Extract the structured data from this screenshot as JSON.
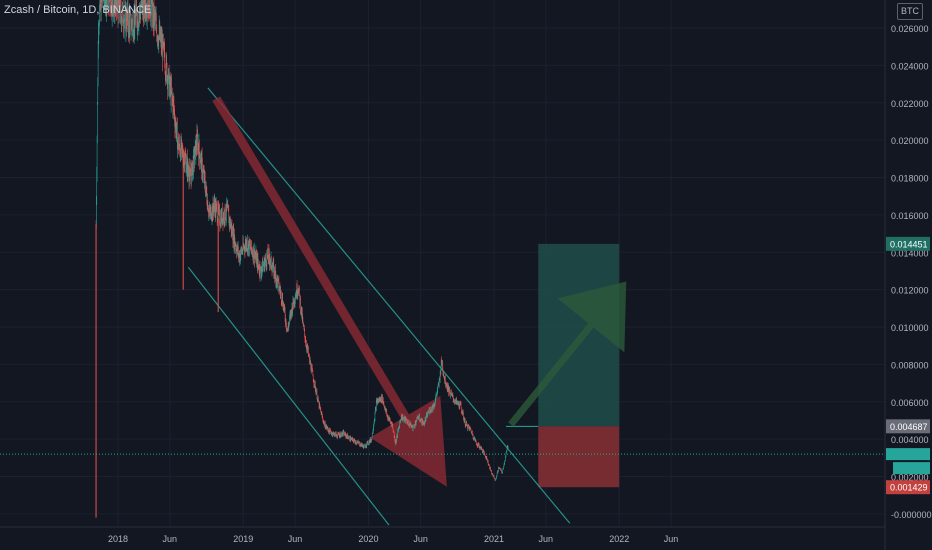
{
  "header": {
    "title": "Zcash / Bitcoin, 1D, BINANCE",
    "currency": "BTC"
  },
  "colors": {
    "background": "#131722",
    "up": "#26a69a",
    "down": "#ef5350",
    "text": "#b2b5be",
    "channel": "#26a69a",
    "current_price_line": "#26a69a",
    "target_zone": "#1f4e4a",
    "stop_zone": "#7b2d33",
    "arrow_down": "#8b2a33",
    "arrow_up": "#2b5a3a"
  },
  "chart_data": {
    "type": "candlestick",
    "symbol": "Zcash / Bitcoin",
    "timeframe": "1D",
    "exchange": "BINANCE",
    "x_tick_labels": [
      "2018",
      "Jun",
      "2019",
      "Jun",
      "2020",
      "Jun",
      "2021",
      "Jun",
      "2022",
      "Jun"
    ],
    "y_tick_labels": [
      "0.026000",
      "0.024000",
      "0.022000",
      "0.020000",
      "0.018000",
      "0.016000",
      "0.014000",
      "0.012000",
      "0.010000",
      "0.008000",
      "0.006000",
      "0.004000",
      "0.002000",
      "-0.000000"
    ],
    "ylim": [
      -0.0007,
      0.0275
    ],
    "price_path": [
      [
        "2017-10-29",
        0.0155
      ],
      [
        "2017-11-05",
        0.0265
      ],
      [
        "2017-11-20",
        0.028
      ],
      [
        "2017-12-15",
        0.0275
      ],
      [
        "2018-01-10",
        0.0268
      ],
      [
        "2018-02-10",
        0.0262
      ],
      [
        "2018-03-10",
        0.027
      ],
      [
        "2018-04-01",
        0.0275
      ],
      [
        "2018-04-20",
        0.0262
      ],
      [
        "2018-05-10",
        0.025
      ],
      [
        "2018-05-25",
        0.0235
      ],
      [
        "2018-06-10",
        0.022
      ],
      [
        "2018-06-25",
        0.0198
      ],
      [
        "2018-07-15",
        0.019
      ],
      [
        "2018-08-01",
        0.018
      ],
      [
        "2018-08-20",
        0.02
      ],
      [
        "2018-09-10",
        0.0178
      ],
      [
        "2018-09-25",
        0.016
      ],
      [
        "2018-10-10",
        0.0165
      ],
      [
        "2018-10-25",
        0.0158
      ],
      [
        "2018-11-15",
        0.0162
      ],
      [
        "2018-12-01",
        0.015
      ],
      [
        "2018-12-20",
        0.0138
      ],
      [
        "2019-01-10",
        0.0145
      ],
      [
        "2019-02-01",
        0.014
      ],
      [
        "2019-02-20",
        0.013
      ],
      [
        "2019-03-15",
        0.0138
      ],
      [
        "2019-04-05",
        0.0128
      ],
      [
        "2019-04-25",
        0.0115
      ],
      [
        "2019-05-10",
        0.0098
      ],
      [
        "2019-05-25",
        0.0112
      ],
      [
        "2019-06-10",
        0.0122
      ],
      [
        "2019-06-25",
        0.01
      ],
      [
        "2019-07-10",
        0.0085
      ],
      [
        "2019-07-25",
        0.0072
      ],
      [
        "2019-08-10",
        0.0058
      ],
      [
        "2019-08-25",
        0.0048
      ],
      [
        "2019-09-10",
        0.0044
      ],
      [
        "2019-10-01",
        0.0042
      ],
      [
        "2019-10-20",
        0.0043
      ],
      [
        "2019-11-10",
        0.004
      ],
      [
        "2019-12-01",
        0.0038
      ],
      [
        "2019-12-20",
        0.0036
      ],
      [
        "2020-01-10",
        0.004
      ],
      [
        "2020-01-25",
        0.006
      ],
      [
        "2020-02-10",
        0.0062
      ],
      [
        "2020-02-25",
        0.0052
      ],
      [
        "2020-03-10",
        0.0048
      ],
      [
        "2020-03-20",
        0.0038
      ],
      [
        "2020-04-05",
        0.0052
      ],
      [
        "2020-04-20",
        0.005
      ],
      [
        "2020-05-10",
        0.0046
      ],
      [
        "2020-05-25",
        0.0052
      ],
      [
        "2020-06-10",
        0.0048
      ],
      [
        "2020-06-25",
        0.0055
      ],
      [
        "2020-07-10",
        0.0058
      ],
      [
        "2020-07-25",
        0.007
      ],
      [
        "2020-08-01",
        0.0082
      ],
      [
        "2020-08-10",
        0.0072
      ],
      [
        "2020-08-25",
        0.0065
      ],
      [
        "2020-09-10",
        0.006
      ],
      [
        "2020-09-25",
        0.0058
      ],
      [
        "2020-10-10",
        0.0048
      ],
      [
        "2020-10-25",
        0.0045
      ],
      [
        "2020-11-10",
        0.0038
      ],
      [
        "2020-11-25",
        0.0035
      ],
      [
        "2020-12-10",
        0.003
      ],
      [
        "2020-12-25",
        0.0022
      ],
      [
        "2021-01-05",
        0.0018
      ],
      [
        "2021-01-15",
        0.0025
      ],
      [
        "2021-01-25",
        0.0022
      ],
      [
        "2021-02-05",
        0.0032
      ],
      [
        "2021-02-12",
        0.0038
      ]
    ],
    "lows": [
      [
        "2017-10-29",
        -0.0002
      ],
      [
        "2018-07-10",
        0.012
      ],
      [
        "2018-10-20",
        0.0108
      ]
    ],
    "channel_upper": [
      [
        "2018-09-20",
        0.0228
      ],
      [
        "2021-08-10",
        -0.0005
      ]
    ],
    "channel_lower": [
      [
        "2018-07-25",
        0.0132
      ],
      [
        "2020-03-01",
        -0.0006
      ]
    ],
    "arrow_down": {
      "from": [
        "2018-10-15",
        0.0222
      ],
      "to": [
        "2020-08-15",
        0.0015
      ]
    },
    "arrow_up": {
      "from": [
        "2021-02-20",
        0.0048
      ],
      "to": [
        "2022-01-20",
        0.0124
      ]
    },
    "position": {
      "start": "2021-05-10",
      "end": "2022-01-01",
      "target": 0.014451,
      "entry": 0.004687,
      "stop": 0.001429,
      "entry_line_start": "2021-02-05"
    },
    "last_price": 0.0032,
    "price_labels": {
      "target": "0.014451",
      "entry": "0.004687",
      "stop": "0.001429"
    }
  }
}
